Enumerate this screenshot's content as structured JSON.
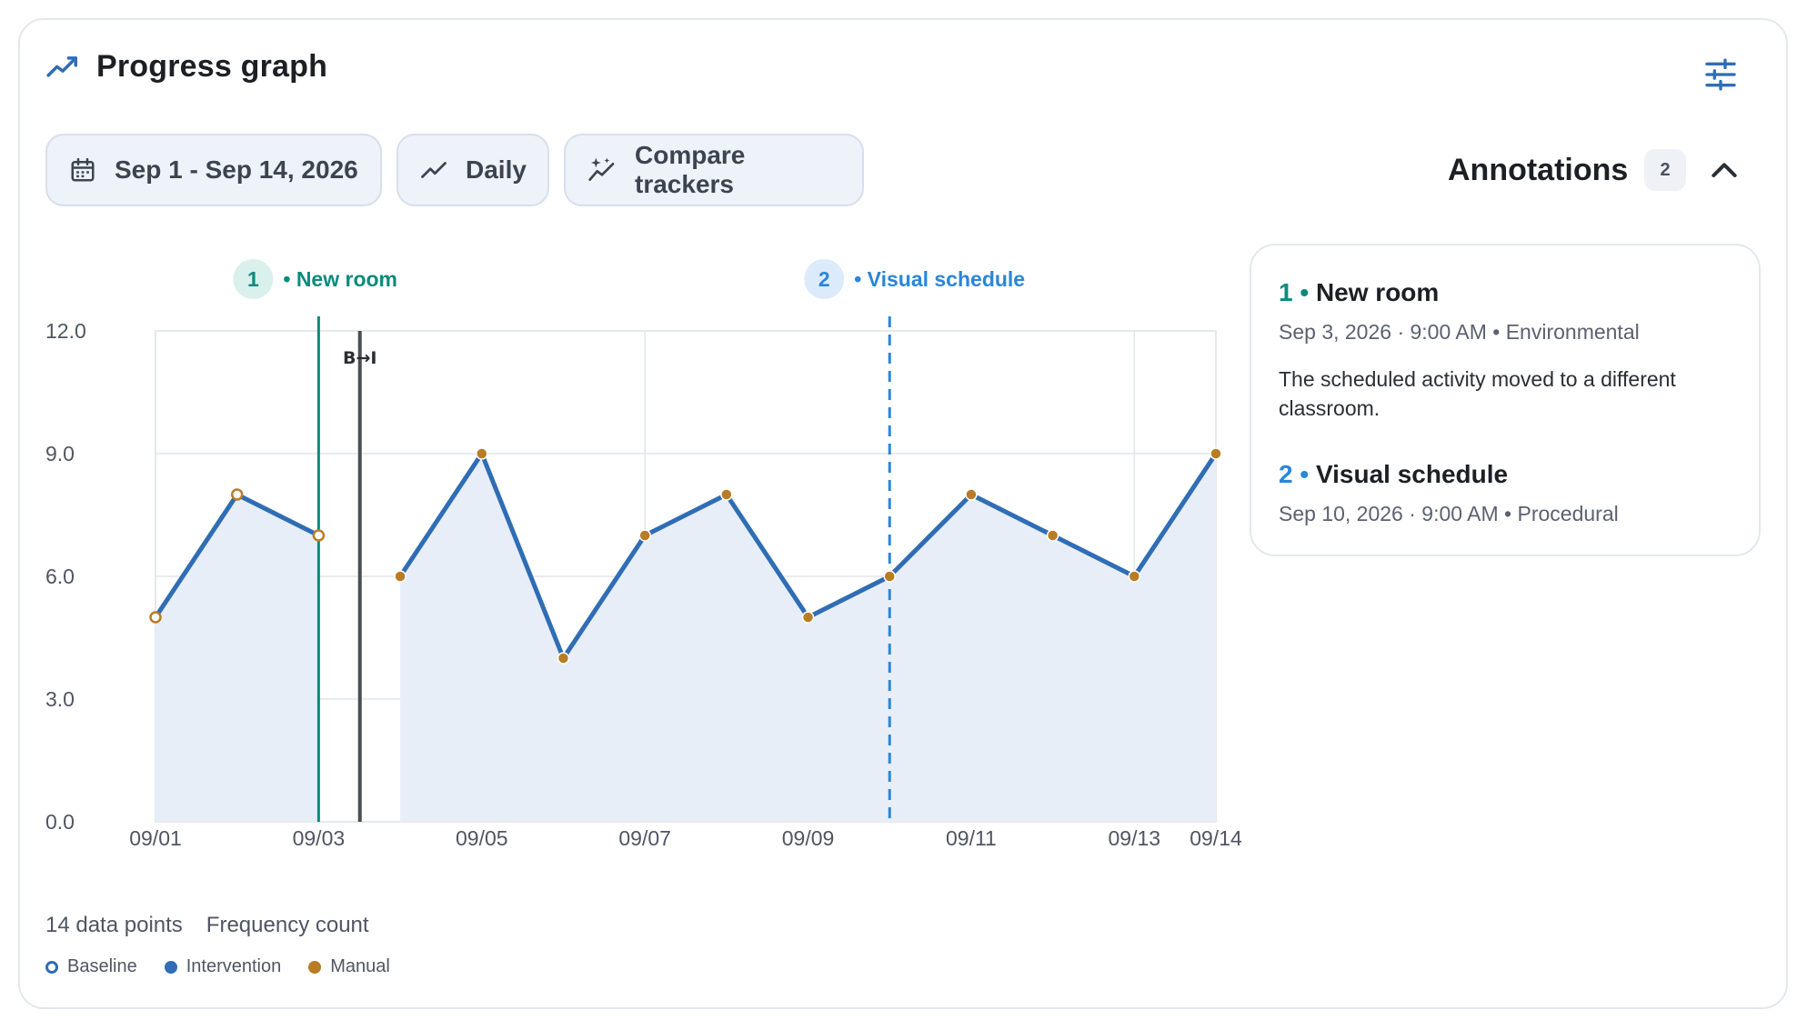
{
  "header": {
    "title": "Progress graph",
    "icon": "trending-up-icon",
    "settings_icon": "tune-icon"
  },
  "toolbar": {
    "date_range": "Sep 1 - Sep 14, 2026",
    "interval": "Daily",
    "compare": "Compare trackers"
  },
  "annotations": {
    "title": "Annotations",
    "count": "2",
    "items": [
      {
        "number": "1",
        "title": "New room",
        "meta": "Sep 3, 2026 · 9:00 AM • Environmental",
        "description": "The scheduled activity moved to a different classroom.",
        "color": "#0b8a7d"
      },
      {
        "number": "2",
        "title": "Visual schedule",
        "meta": "Sep 10, 2026 · 9:00 AM • Procedural",
        "description": "",
        "color": "#2a86d8"
      }
    ]
  },
  "chart_data": {
    "type": "line",
    "x": [
      "09/01",
      "09/02",
      "09/03",
      "09/04",
      "09/05",
      "09/06",
      "09/07",
      "09/08",
      "09/09",
      "09/10",
      "09/11",
      "09/12",
      "09/13",
      "09/14"
    ],
    "tick_labels": [
      "09/01",
      "09/03",
      "09/05",
      "09/07",
      "09/09",
      "09/11",
      "09/13",
      "09/14"
    ],
    "y": [
      5,
      8,
      7,
      6,
      9,
      4,
      7,
      8,
      5,
      6,
      8,
      7,
      6,
      9
    ],
    "phase": [
      "Baseline",
      "Baseline",
      "Baseline",
      "Intervention",
      "Intervention",
      "Intervention",
      "Intervention",
      "Intervention",
      "Intervention",
      "Intervention",
      "Intervention",
      "Intervention",
      "Intervention",
      "Intervention"
    ],
    "source": [
      "Manual",
      "Manual",
      "Manual",
      "Manual",
      "Manual",
      "Manual",
      "Manual",
      "Manual",
      "Manual",
      "Manual",
      "Manual",
      "Manual",
      "Manual",
      "Manual"
    ],
    "y_ticks": [
      "0.0",
      "3.0",
      "6.0",
      "9.0",
      "12.0"
    ],
    "ylim": [
      0,
      12
    ],
    "phase_change": {
      "label": "B→I",
      "between": [
        "09/03",
        "09/04"
      ]
    },
    "annotation_markers": [
      {
        "number": "1",
        "label": "New room",
        "x": "09/03",
        "style": "solid",
        "color": "#0b8a7d"
      },
      {
        "number": "2",
        "label": "Visual schedule",
        "x": "09/10",
        "style": "dashed",
        "color": "#2a86d8"
      }
    ],
    "grid": true,
    "colors": {
      "line": "#2f6db5",
      "area": "#e8eef8",
      "point": "#b87d24",
      "phase_line": "#4a4d52"
    }
  },
  "footer": {
    "points": "14 data points",
    "metric": "Frequency count"
  },
  "legend": [
    {
      "label": "Baseline",
      "kind": "hollow",
      "color": "#2f6db5"
    },
    {
      "label": "Intervention",
      "kind": "filled",
      "color": "#2f6db5"
    },
    {
      "label": "Manual",
      "kind": "filled",
      "color": "#b87d24"
    }
  ]
}
